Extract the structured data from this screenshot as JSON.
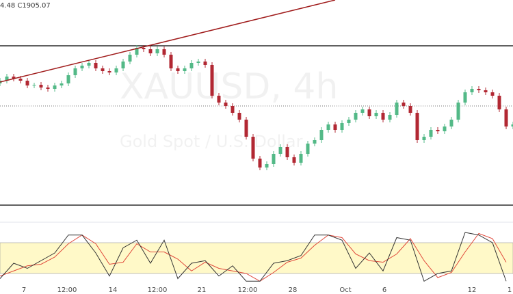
{
  "chart_data": {
    "type": "candlestick",
    "header": "4.48 C1905.07",
    "watermark_title": "XAUUSD, 4h",
    "watermark_subtitle": "Gold Spot / U.S. Dollar",
    "ylim": [
      1845,
      2000
    ],
    "open": [
      1939,
      1941,
      1944,
      1942.5,
      1941,
      1937.5,
      1938,
      1936,
      1935,
      1937.5,
      1939,
      1945,
      1950,
      1952,
      1954,
      1950,
      1948,
      1947,
      1950,
      1955,
      1960,
      1965,
      1964,
      1961,
      1964,
      1960,
      1950,
      1948,
      1950,
      1954,
      1955,
      1952.5,
      1930,
      1925,
      1922.5,
      1917.5,
      1912.5,
      1900,
      1884,
      1877.5,
      1880,
      1887.5,
      1892.5,
      1885,
      1881,
      1887.5,
      1895,
      1897.5,
      1905,
      1909,
      1905,
      1910,
      1912.5,
      1917.5,
      1920,
      1915,
      1917.5,
      1912.5,
      1916,
      1925,
      1922.5,
      1917.5,
      1897.5,
      1900,
      1905,
      1904,
      1907.5,
      1912.5,
      1925,
      1932.5,
      1935,
      1934,
      1932.5,
      1930,
      1920,
      1907.5
    ],
    "high": [
      1943,
      1946,
      1946,
      1944.5,
      1943,
      1939.5,
      1940,
      1938,
      1939.5,
      1941,
      1947,
      1952,
      1954,
      1956,
      1956,
      1952,
      1950,
      1952,
      1957,
      1962,
      1967,
      1967,
      1966,
      1966,
      1966,
      1962,
      1952,
      1952,
      1956,
      1957,
      1957,
      1954.5,
      1932,
      1927,
      1924.5,
      1919.5,
      1914.5,
      1902,
      1886,
      1882,
      1889.5,
      1894.5,
      1894.5,
      1887,
      1889.5,
      1897,
      1899.5,
      1907,
      1911,
      1911,
      1912,
      1914.5,
      1919.5,
      1922,
      1922,
      1919.5,
      1919.5,
      1918,
      1927,
      1927,
      1924.5,
      1919.5,
      1902,
      1907,
      1907,
      1909.5,
      1914.5,
      1927,
      1934.5,
      1937,
      1937,
      1936,
      1934.5,
      1932,
      1922,
      1911
    ],
    "low": [
      1937,
      1939,
      1940.5,
      1939,
      1935.5,
      1935.5,
      1934,
      1933,
      1933,
      1935.5,
      1937,
      1943,
      1948,
      1950,
      1948,
      1946,
      1945,
      1945,
      1948,
      1953,
      1958,
      1962,
      1959,
      1959,
      1958,
      1948,
      1946,
      1946,
      1948,
      1952,
      1950.5,
      1928,
      1923,
      1920.5,
      1915.5,
      1910.5,
      1898,
      1882,
      1875.5,
      1875.5,
      1878,
      1885.5,
      1883,
      1879,
      1879,
      1885.5,
      1893,
      1895.5,
      1903,
      1903,
      1903,
      1908,
      1910.5,
      1915.5,
      1913,
      1913,
      1910.5,
      1910.5,
      1914,
      1920.5,
      1915.5,
      1895.5,
      1895.5,
      1898,
      1902,
      1902,
      1905.5,
      1910.5,
      1923,
      1930.5,
      1932,
      1930.5,
      1928,
      1918,
      1905.5,
      1905.5
    ],
    "close": [
      1941,
      1944,
      1942.5,
      1941,
      1937.5,
      1938,
      1936,
      1935,
      1937.5,
      1939,
      1945,
      1950,
      1952,
      1954,
      1950,
      1948,
      1947,
      1950,
      1955,
      1960,
      1965,
      1964,
      1961,
      1964,
      1960,
      1950,
      1948,
      1950,
      1954,
      1955,
      1952.5,
      1930,
      1925,
      1922.5,
      1917.5,
      1912.5,
      1900,
      1884,
      1877.5,
      1880,
      1887.5,
      1892.5,
      1885,
      1881,
      1887.5,
      1895,
      1897.5,
      1905,
      1909,
      1905,
      1910,
      1912.5,
      1917.5,
      1920,
      1915,
      1917.5,
      1912.5,
      1916,
      1925,
      1922.5,
      1917.5,
      1897.5,
      1900,
      1905,
      1904,
      1907.5,
      1912.5,
      1925,
      1932.5,
      1935,
      1934,
      1932.5,
      1930,
      1920,
      1907.5,
      1909
    ],
    "up_color": "#53b987",
    "down_color": "#b22833",
    "levels": [
      1966.5,
      1850
    ],
    "price_line": 1922.5,
    "trendline": {
      "start": [
        0,
        1940
      ],
      "end": [
        49,
        2000
      ],
      "color": "#a01c1c"
    },
    "x_labels": [
      "7",
      "12:00",
      "14",
      "12:00",
      "21",
      "12:00",
      "28",
      "Oct",
      "6",
      "12",
      "1"
    ],
    "stochastic": {
      "ylim": [
        0,
        100
      ],
      "band": [
        20,
        80
      ],
      "k": [
        10,
        40,
        30,
        45,
        60,
        95,
        95,
        60,
        15,
        70,
        85,
        40,
        85,
        10,
        40,
        45,
        15,
        35,
        5,
        5,
        40,
        45,
        55,
        95,
        95,
        85,
        30,
        60,
        25,
        90,
        85,
        5,
        20,
        25,
        100,
        95,
        80,
        5
      ],
      "d": [
        15,
        25,
        35,
        38,
        52,
        78,
        95,
        78,
        38,
        42,
        78,
        62,
        62,
        48,
        25,
        42,
        30,
        25,
        20,
        5,
        22,
        42,
        50,
        75,
        95,
        90,
        58,
        45,
        42,
        58,
        88,
        45,
        12,
        22,
        62,
        98,
        88,
        42
      ],
      "k_color": "#333333",
      "d_color": "#e0483a"
    }
  }
}
